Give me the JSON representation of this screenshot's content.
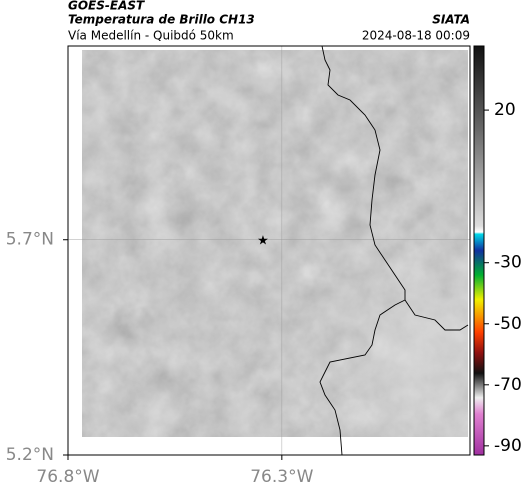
{
  "header": {
    "title": "GOES-EAST",
    "subtitle": "Temperatura de Brillo CH13",
    "source": "SIATA",
    "region": "Vía Medellín - Quibdó 50km",
    "timestamp": "2024-08-18 00:09"
  },
  "map": {
    "xlim": [
      -76.8,
      -75.86
    ],
    "ylim": [
      5.2,
      6.15
    ],
    "xticks": [
      {
        "value": -76.8,
        "label": "76.8°W"
      },
      {
        "value": -76.3,
        "label": "76.3°W"
      }
    ],
    "yticks": [
      {
        "value": 5.7,
        "label": "5.7°N"
      },
      {
        "value": 5.2,
        "label": "5.2°N"
      }
    ]
  },
  "colorbar": {
    "clim": [
      -93,
      41
    ],
    "ticks": [
      20,
      -30,
      -50,
      -70,
      -90
    ]
  }
}
